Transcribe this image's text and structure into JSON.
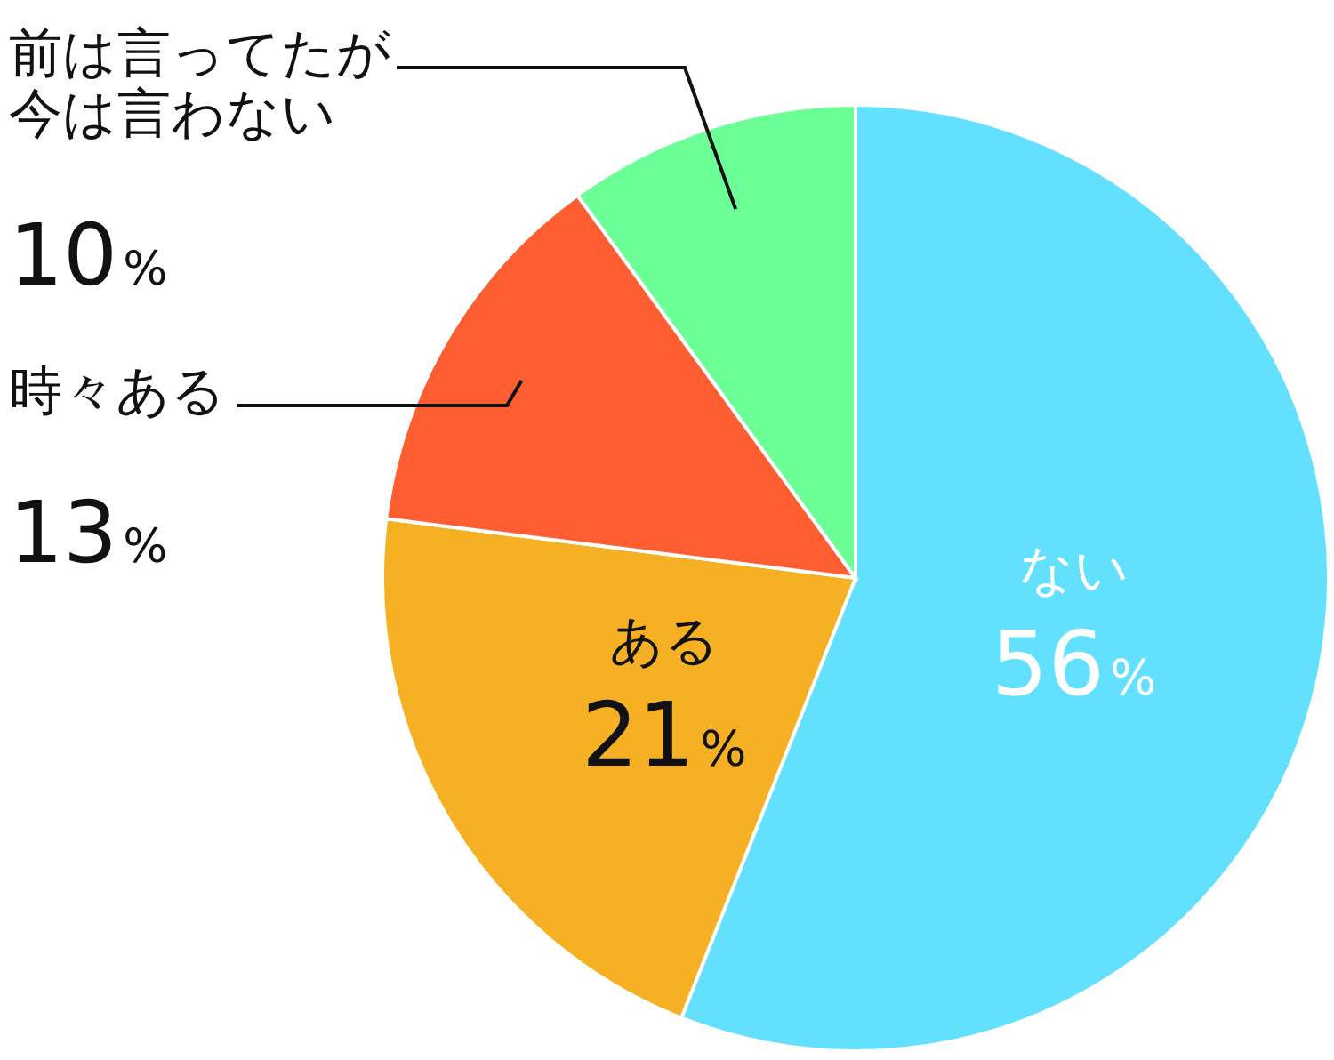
{
  "chart_data": {
    "type": "pie",
    "categories": [
      "ない",
      "ある",
      "時々ある",
      "前は言ってたが今は言わない"
    ],
    "values": [
      56,
      21,
      13,
      10
    ],
    "colors": [
      "#62e0fd",
      "#f5b024",
      "#ff5e33",
      "#6cff97"
    ],
    "value_labels": [
      "56%",
      "21%",
      "13%",
      "10%"
    ]
  }
}
